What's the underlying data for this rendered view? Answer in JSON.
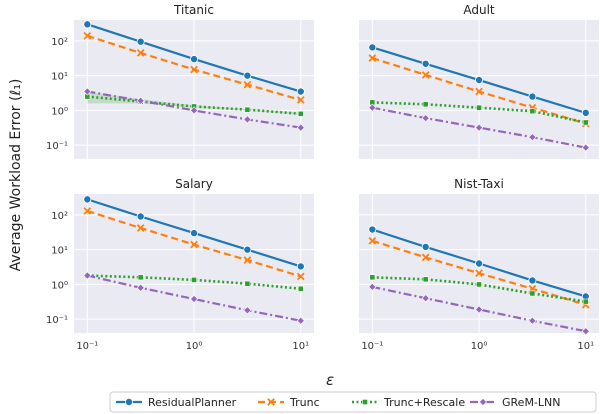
{
  "chart_data": {
    "type": "line",
    "ylabel": "Average Workload Error (ℓ₁)",
    "xlabel": "ε",
    "xscale": "log",
    "yscale": "log",
    "x": [
      0.1,
      0.316,
      1,
      3.16,
      10
    ],
    "xticks": [
      "10⁻¹",
      "10⁰",
      "10¹"
    ],
    "yticks": [
      "10⁻¹",
      "10⁰",
      "10¹",
      "10²"
    ],
    "ylim": [
      0.04,
      400
    ],
    "grid": true,
    "legend_position": "bottom",
    "colors": {
      "ResidualPlanner": "#1f77b4",
      "Trunc": "#ff7f0e",
      "Trunc+Rescale": "#2ca02c",
      "GReM-LNN": "#9467bd"
    },
    "panels": [
      {
        "title": "Titanic",
        "series": [
          {
            "name": "ResidualPlanner",
            "values": [
              300,
              95,
              30,
              10,
              3.5
            ]
          },
          {
            "name": "Trunc",
            "values": [
              140,
              45,
              15,
              5.5,
              2
            ]
          },
          {
            "name": "Trunc+Rescale",
            "values": [
              2.5,
              1.8,
              1.3,
              1.05,
              0.8
            ],
            "band": [
              [
                1.6,
                3.5
              ],
              [
                1.6,
                2.1
              ],
              [
                1.2,
                1.4
              ],
              [
                1.0,
                1.1
              ],
              [
                0.75,
                0.85
              ]
            ]
          },
          {
            "name": "GReM-LNN",
            "values": [
              3.5,
              1.9,
              1.0,
              0.55,
              0.32
            ]
          }
        ]
      },
      {
        "title": "Adult",
        "series": [
          {
            "name": "ResidualPlanner",
            "values": [
              65,
              22,
              7.5,
              2.5,
              0.85
            ]
          },
          {
            "name": "Trunc",
            "values": [
              32,
              10.5,
              3.5,
              1.2,
              0.42
            ]
          },
          {
            "name": "Trunc+Rescale",
            "values": [
              1.7,
              1.5,
              1.2,
              0.95,
              0.45
            ]
          },
          {
            "name": "GReM-LNN",
            "values": [
              1.2,
              0.6,
              0.32,
              0.17,
              0.085
            ]
          }
        ]
      },
      {
        "title": "Salary",
        "series": [
          {
            "name": "ResidualPlanner",
            "values": [
              280,
              90,
              30,
              10,
              3.3
            ]
          },
          {
            "name": "Trunc",
            "values": [
              130,
              42,
              14,
              5,
              1.7
            ]
          },
          {
            "name": "Trunc+Rescale",
            "values": [
              1.8,
              1.6,
              1.35,
              1.05,
              0.75
            ]
          },
          {
            "name": "GReM-LNN",
            "values": [
              1.8,
              0.8,
              0.38,
              0.18,
              0.09
            ]
          }
        ]
      },
      {
        "title": "Nist-Taxi",
        "series": [
          {
            "name": "ResidualPlanner",
            "values": [
              38,
              12,
              4,
              1.3,
              0.45
            ]
          },
          {
            "name": "Trunc",
            "values": [
              18,
              6,
              2.1,
              0.75,
              0.26
            ]
          },
          {
            "name": "Trunc+Rescale",
            "values": [
              1.6,
              1.4,
              1.0,
              0.55,
              0.32
            ]
          },
          {
            "name": "GReM-LNN",
            "values": [
              0.85,
              0.4,
              0.19,
              0.09,
              0.045
            ]
          }
        ]
      }
    ],
    "legend": [
      "ResidualPlanner",
      "Trunc",
      "Trunc+Rescale",
      "GReM-LNN"
    ]
  }
}
